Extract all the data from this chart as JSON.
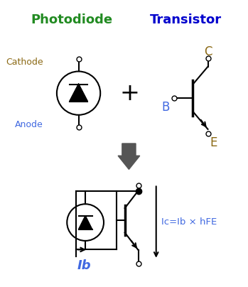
{
  "bg_color": "#ffffff",
  "title_photodiode": "Photodiode",
  "title_transistor": "Transistor",
  "title_photodiode_color": "#228B22",
  "title_transistor_color": "#0000CD",
  "cathode_label": "Cathode",
  "anode_label": "Anode",
  "B_label": "B",
  "C_label": "C",
  "E_label": "E",
  "Ib_label": "Ib",
  "Ic_label": "Ic=Ib × hFE",
  "label_color_brown": "#8B6914",
  "label_color_blue": "#4169E1",
  "arrow_color": "#555555",
  "plus_color": "#000000",
  "line_color": "#000000"
}
